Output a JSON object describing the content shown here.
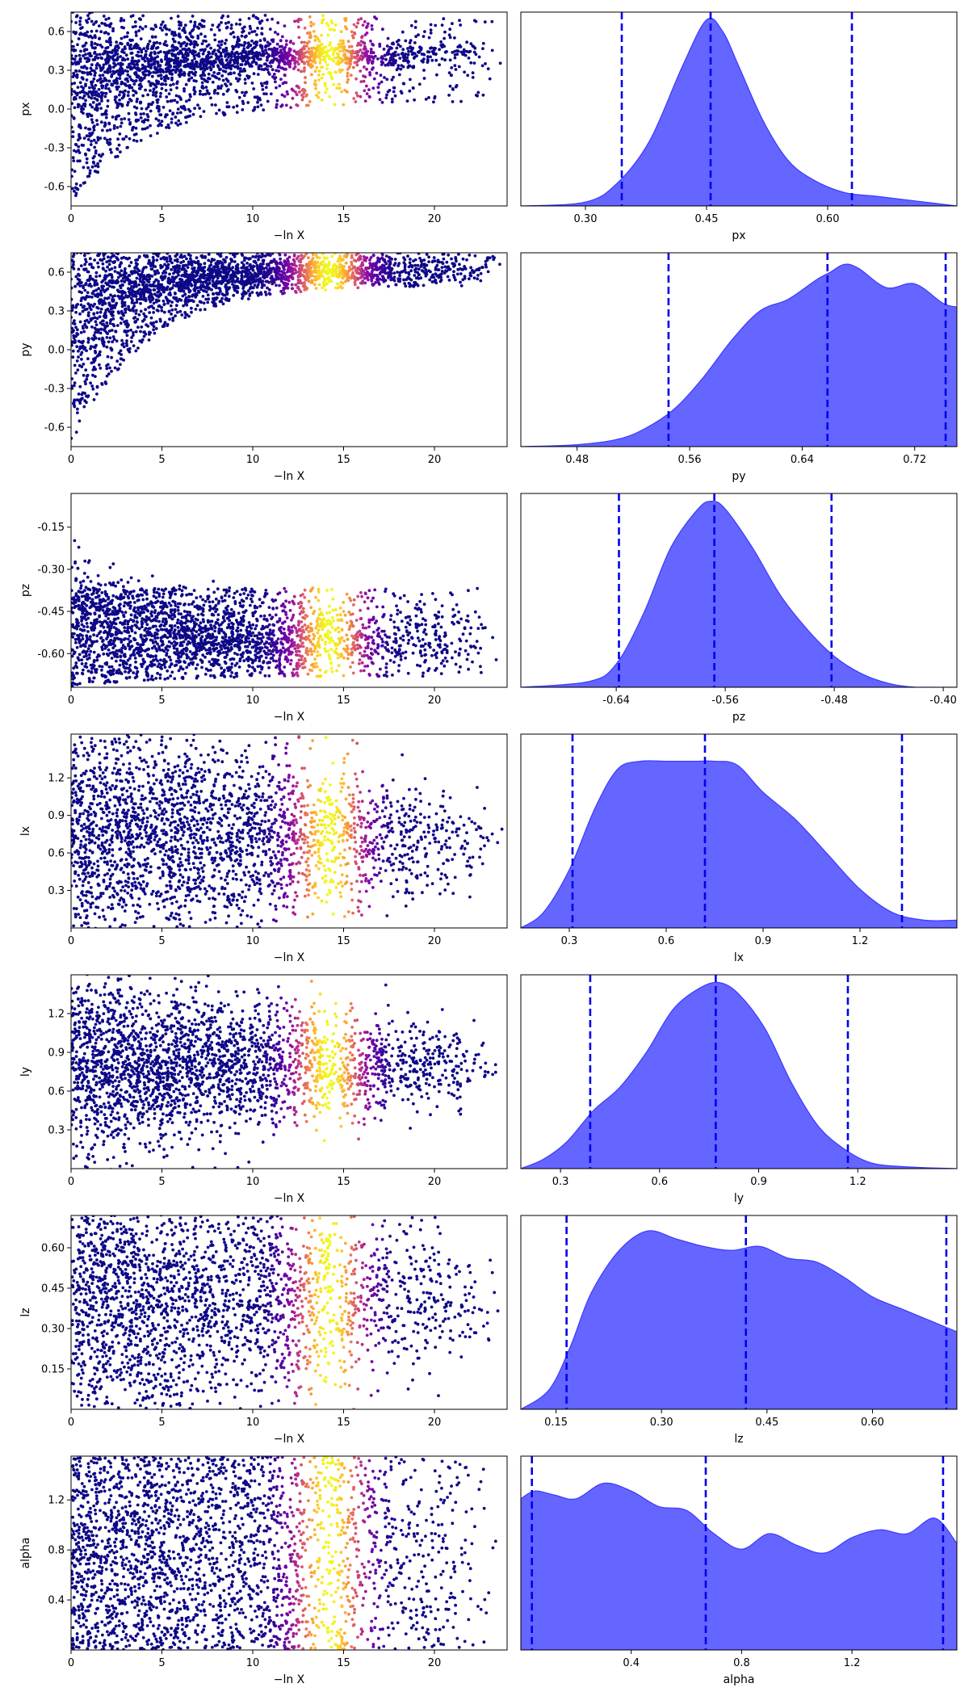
{
  "figure": {
    "type": "dynesty-traceplot"
  },
  "colors": {
    "posterior_fill": "#6565ff",
    "posterior_edge": "#3a3aff",
    "quantile_line": "#0000ee",
    "colormap": "plasma"
  },
  "chart_data": [
    {
      "row": 1,
      "panel": "trace",
      "type": "scatter",
      "xlabel": "−ln X",
      "ylabel": "px",
      "xlim": [
        0,
        24
      ],
      "ylim": [
        -0.75,
        0.75
      ],
      "xticks": [
        "0",
        "5",
        "10",
        "15",
        "20"
      ],
      "yticks": [
        "-0.6",
        "-0.3",
        "0.0",
        "0.3",
        "0.6"
      ],
      "trace": {
        "shape": "converge",
        "y_final": 0.42,
        "y_band": [
          0.05,
          0.72
        ]
      }
    },
    {
      "row": 1,
      "panel": "posterior",
      "type": "area",
      "xlabel": "px",
      "ylabel": "",
      "xlim": [
        0.22,
        0.76
      ],
      "xticks": [
        "0.30",
        "0.45",
        "0.60"
      ],
      "density": {
        "x": [
          0.22,
          0.3,
          0.34,
          0.38,
          0.42,
          0.45,
          0.47,
          0.49,
          0.52,
          0.55,
          0.58,
          0.62,
          0.66,
          0.7,
          0.76
        ],
        "y": [
          0.0,
          0.02,
          0.12,
          0.34,
          0.72,
          0.96,
          0.9,
          0.72,
          0.44,
          0.24,
          0.14,
          0.07,
          0.05,
          0.03,
          0.0
        ]
      },
      "quantiles": [
        0.345,
        0.455,
        0.63
      ]
    },
    {
      "row": 2,
      "panel": "trace",
      "type": "scatter",
      "xlabel": "−ln X",
      "ylabel": "py",
      "xlim": [
        0,
        24
      ],
      "ylim": [
        -0.75,
        0.75
      ],
      "xticks": [
        "0",
        "5",
        "10",
        "15",
        "20"
      ],
      "yticks": [
        "-0.6",
        "-0.3",
        "0.0",
        "0.3",
        "0.6"
      ],
      "trace": {
        "shape": "converge",
        "y_final": 0.62,
        "y_band": [
          0.5,
          0.75
        ]
      }
    },
    {
      "row": 2,
      "panel": "posterior",
      "type": "area",
      "xlabel": "py",
      "ylabel": "",
      "xlim": [
        0.44,
        0.75
      ],
      "xticks": [
        "0.48",
        "0.56",
        "0.64",
        "0.72"
      ],
      "density": {
        "x": [
          0.44,
          0.48,
          0.51,
          0.53,
          0.55,
          0.57,
          0.59,
          0.61,
          0.63,
          0.65,
          0.66,
          0.67,
          0.68,
          0.7,
          0.72,
          0.74,
          0.75
        ],
        "y": [
          0.0,
          0.01,
          0.04,
          0.1,
          0.2,
          0.36,
          0.55,
          0.7,
          0.76,
          0.86,
          0.9,
          0.94,
          0.92,
          0.82,
          0.84,
          0.74,
          0.72
        ]
      },
      "quantiles": [
        0.545,
        0.658,
        0.742
      ]
    },
    {
      "row": 3,
      "panel": "trace",
      "type": "scatter",
      "xlabel": "−ln X",
      "ylabel": "pz",
      "xlim": [
        0,
        24
      ],
      "ylim": [
        -0.72,
        -0.03
      ],
      "xticks": [
        "0",
        "5",
        "10",
        "15",
        "20"
      ],
      "yticks": [
        "-0.15",
        "-0.30",
        "-0.45",
        "-0.60"
      ],
      "trace": {
        "shape": "converge",
        "y_final": -0.56,
        "y_band": [
          -0.68,
          -0.45
        ]
      }
    },
    {
      "row": 3,
      "panel": "posterior",
      "type": "area",
      "xlabel": "pz",
      "ylabel": "",
      "xlim": [
        -0.71,
        -0.39
      ],
      "xticks": [
        "-0.64",
        "-0.56",
        "-0.48",
        "-0.40"
      ],
      "density": {
        "x": [
          -0.71,
          -0.66,
          -0.64,
          -0.62,
          -0.6,
          -0.58,
          -0.57,
          -0.56,
          -0.54,
          -0.52,
          -0.5,
          -0.48,
          -0.46,
          -0.44,
          -0.42,
          -0.39
        ],
        "y": [
          0.0,
          0.03,
          0.12,
          0.38,
          0.72,
          0.92,
          0.96,
          0.92,
          0.72,
          0.48,
          0.3,
          0.16,
          0.07,
          0.02,
          0.0,
          0.0
        ]
      },
      "quantiles": [
        -0.638,
        -0.568,
        -0.482
      ]
    },
    {
      "row": 4,
      "panel": "trace",
      "type": "scatter",
      "xlabel": "−ln X",
      "ylabel": "lx",
      "xlim": [
        0,
        24
      ],
      "ylim": [
        0.0,
        1.55
      ],
      "xticks": [
        "0",
        "5",
        "10",
        "15",
        "20"
      ],
      "yticks": [
        "0.3",
        "0.6",
        "0.9",
        "1.2"
      ],
      "trace": {
        "shape": "cloud",
        "y_center": 0.72,
        "y_band": [
          0.3,
          1.2
        ]
      }
    },
    {
      "row": 4,
      "panel": "posterior",
      "type": "area",
      "xlabel": "lx",
      "ylabel": "",
      "xlim": [
        0.15,
        1.5
      ],
      "xticks": [
        "0.3",
        "0.6",
        "0.9",
        "1.2"
      ],
      "density": {
        "x": [
          0.15,
          0.22,
          0.3,
          0.38,
          0.45,
          0.52,
          0.6,
          0.68,
          0.75,
          0.82,
          0.9,
          1.0,
          1.1,
          1.2,
          1.3,
          1.4,
          1.5
        ],
        "y": [
          0.0,
          0.08,
          0.3,
          0.62,
          0.82,
          0.86,
          0.86,
          0.86,
          0.86,
          0.84,
          0.7,
          0.56,
          0.38,
          0.2,
          0.08,
          0.04,
          0.04
        ]
      },
      "quantiles": [
        0.31,
        0.72,
        1.33
      ]
    },
    {
      "row": 5,
      "panel": "trace",
      "type": "scatter",
      "xlabel": "−ln X",
      "ylabel": "ly",
      "xlim": [
        0,
        24
      ],
      "ylim": [
        0.0,
        1.5
      ],
      "xticks": [
        "0",
        "5",
        "10",
        "15",
        "20"
      ],
      "yticks": [
        "0.3",
        "0.6",
        "0.9",
        "1.2"
      ],
      "trace": {
        "shape": "cloud",
        "y_center": 0.8,
        "y_band": [
          0.45,
          1.1
        ]
      }
    },
    {
      "row": 5,
      "panel": "posterior",
      "type": "area",
      "xlabel": "ly",
      "ylabel": "",
      "xlim": [
        0.18,
        1.5
      ],
      "xticks": [
        "0.3",
        "0.6",
        "0.9",
        "1.2"
      ],
      "density": {
        "x": [
          0.18,
          0.25,
          0.32,
          0.4,
          0.48,
          0.56,
          0.64,
          0.72,
          0.78,
          0.84,
          0.92,
          1.0,
          1.08,
          1.16,
          1.24,
          1.34,
          1.5
        ],
        "y": [
          0.0,
          0.05,
          0.14,
          0.3,
          0.42,
          0.6,
          0.82,
          0.93,
          0.96,
          0.9,
          0.72,
          0.44,
          0.22,
          0.1,
          0.03,
          0.01,
          0.0
        ]
      },
      "quantiles": [
        0.39,
        0.77,
        1.17
      ]
    },
    {
      "row": 6,
      "panel": "trace",
      "type": "scatter",
      "xlabel": "−ln X",
      "ylabel": "lz",
      "xlim": [
        0,
        24
      ],
      "ylim": [
        0.0,
        0.72
      ],
      "xticks": [
        "0",
        "5",
        "10",
        "15",
        "20"
      ],
      "yticks": [
        "0.15",
        "0.30",
        "0.45",
        "0.60"
      ],
      "trace": {
        "shape": "cloud",
        "y_center": 0.42,
        "y_band": [
          0.15,
          0.7
        ]
      }
    },
    {
      "row": 6,
      "panel": "posterior",
      "type": "area",
      "xlabel": "lz",
      "ylabel": "",
      "xlim": [
        0.1,
        0.72
      ],
      "xticks": [
        "0.15",
        "0.30",
        "0.45",
        "0.60"
      ],
      "density": {
        "x": [
          0.1,
          0.14,
          0.17,
          0.2,
          0.24,
          0.28,
          0.32,
          0.36,
          0.4,
          0.44,
          0.48,
          0.52,
          0.56,
          0.6,
          0.64,
          0.68,
          0.72
        ],
        "y": [
          0.0,
          0.1,
          0.32,
          0.6,
          0.82,
          0.92,
          0.88,
          0.84,
          0.82,
          0.84,
          0.78,
          0.76,
          0.68,
          0.58,
          0.52,
          0.46,
          0.4
        ]
      },
      "quantiles": [
        0.165,
        0.42,
        0.705
      ]
    },
    {
      "row": 7,
      "panel": "trace",
      "type": "scatter",
      "xlabel": "−ln X",
      "ylabel": "alpha",
      "xlim": [
        0,
        24
      ],
      "ylim": [
        0.0,
        1.55
      ],
      "xticks": [
        "0",
        "5",
        "10",
        "15",
        "20"
      ],
      "yticks": [
        "0.4",
        "0.8",
        "1.2"
      ],
      "trace": {
        "shape": "uniform",
        "y_band": [
          0.0,
          1.55
        ]
      }
    },
    {
      "row": 7,
      "panel": "posterior",
      "type": "area",
      "xlabel": "alpha",
      "ylabel": "",
      "xlim": [
        0.0,
        1.58
      ],
      "xticks": [
        "0.4",
        "0.8",
        "1.2"
      ],
      "density": {
        "x": [
          0.0,
          0.05,
          0.12,
          0.2,
          0.3,
          0.4,
          0.5,
          0.6,
          0.7,
          0.8,
          0.9,
          1.0,
          1.1,
          1.2,
          1.3,
          1.4,
          1.5,
          1.58
        ],
        "y": [
          0.78,
          0.82,
          0.8,
          0.78,
          0.86,
          0.82,
          0.74,
          0.72,
          0.6,
          0.52,
          0.6,
          0.54,
          0.5,
          0.58,
          0.62,
          0.6,
          0.68,
          0.55
        ]
      },
      "quantiles": [
        0.04,
        0.67,
        1.53
      ]
    }
  ]
}
